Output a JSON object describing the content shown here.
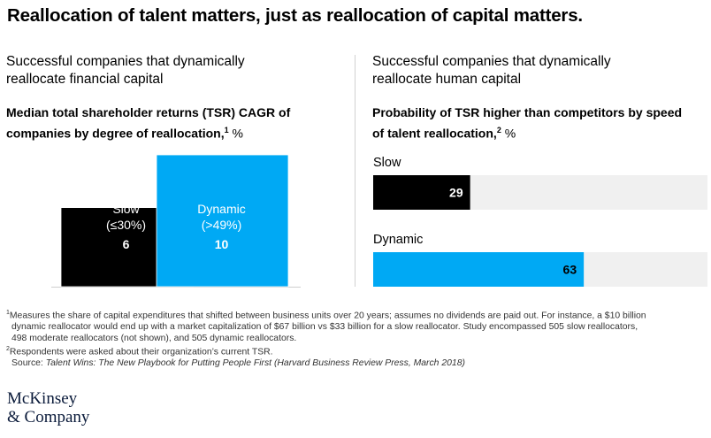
{
  "title": "Reallocation of talent matters, just as reallocation of capital matters.",
  "left": {
    "subtitle_line1": "Successful companies that dynamically",
    "subtitle_line2": "reallocate financial capital",
    "chart_title_line1": "Median total shareholder returns (TSR) CAGR of",
    "chart_title_line2": "companies by degree of reallocation,",
    "footnote_mark": "1",
    "unit": "%"
  },
  "right": {
    "subtitle_line1": "Successful companies that dynamically",
    "subtitle_line2": "reallocate human capital",
    "chart_title_line1": "Probability of TSR higher than competitors by speed",
    "chart_title_line2": "of talent reallocation,",
    "footnote_mark": "2",
    "unit": "%"
  },
  "chart_data": [
    {
      "type": "bar",
      "categories": [
        "Slow",
        "Dynamic"
      ],
      "category_sublabels": [
        "(≤30%)",
        "(>49%)"
      ],
      "values": [
        6,
        10
      ],
      "colors": [
        "#000000",
        "#00a9f4"
      ],
      "ylim": [
        0,
        10
      ]
    },
    {
      "type": "bar",
      "orientation": "horizontal",
      "categories": [
        "Slow",
        "Dynamic"
      ],
      "values": [
        29,
        63
      ],
      "colors": [
        "#000000",
        "#00a9f4"
      ],
      "track_color": "#f0f0f0",
      "xlim": [
        0,
        100
      ]
    }
  ],
  "footnotes": {
    "f1_mark": "1",
    "f1_line1": "Measures the share of capital expenditures that shifted between business units over 20 years; assumes no dividends are paid out. For instance, a $10 billion",
    "f1_line2": "dynamic reallocator would end up with a market capitalization of $67 billion vs $33 billion for a slow reallocator. Study encompassed 505 slow reallocators,",
    "f1_line3": "498 moderate reallocators (not shown), and 505 dynamic reallocators.",
    "f2_mark": "2",
    "f2_line1": "Respondents were asked about their organization’s current TSR.",
    "source_label": "Source:",
    "source_text": "Talent Wins: The New Playbook for Putting People First (Harvard Business Review Press, March 2018)"
  },
  "logo": {
    "line1": "McKinsey",
    "line2": "& Company"
  }
}
